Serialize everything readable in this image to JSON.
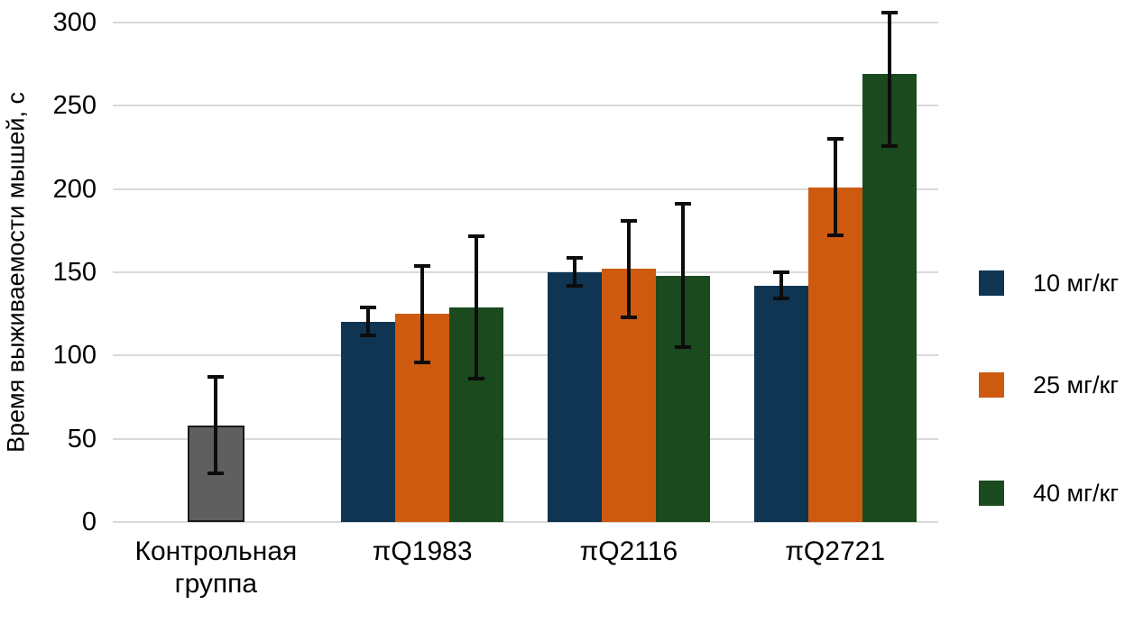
{
  "colors": {
    "series_blue": "#0f3553",
    "series_orange": "#ce5a10",
    "series_green": "#1a4a1e",
    "control_fill": "#5f5f5f",
    "control_border": "#1a1a1a",
    "grid": "#d9d9d9",
    "error_bar": "#0d0d0d",
    "text": "#000000"
  },
  "chart_data": {
    "type": "bar",
    "title": "",
    "xlabel": "",
    "ylabel": "Время выживаемости мышей, с",
    "ylim": [
      0,
      300
    ],
    "yticks": [
      0,
      50,
      100,
      150,
      200,
      250,
      300
    ],
    "grid": true,
    "legend_position": "right",
    "categories": [
      "Контрольная группа",
      "πQ1983",
      "πQ2116",
      "πQ2721"
    ],
    "control": {
      "category": "Контрольная группа",
      "value": 58,
      "error_low": 28,
      "error_high": 88,
      "color": "#5f5f5f"
    },
    "series": [
      {
        "name": "10 мг/кг",
        "color": "#0f3553",
        "values": [
          null,
          120,
          150,
          142
        ],
        "error_low": [
          null,
          111,
          141,
          133
        ],
        "error_high": [
          null,
          130,
          160,
          151
        ]
      },
      {
        "name": "25 мг/кг",
        "color": "#ce5a10",
        "values": [
          null,
          125,
          152,
          201
        ],
        "error_low": [
          null,
          95,
          122,
          171
        ],
        "error_high": [
          null,
          155,
          182,
          231
        ]
      },
      {
        "name": "40 мг/кг",
        "color": "#1a4a1e",
        "values": [
          null,
          129,
          148,
          269
        ],
        "error_low": [
          null,
          85,
          104,
          225
        ],
        "error_high": [
          null,
          173,
          192,
          307
        ]
      }
    ]
  }
}
